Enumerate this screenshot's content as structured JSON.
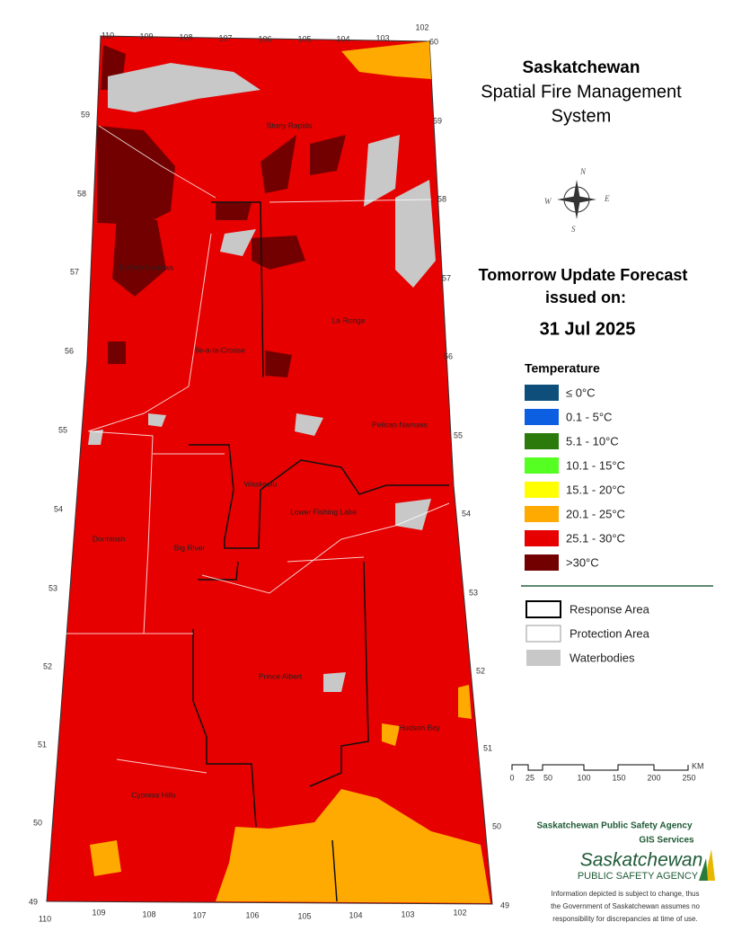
{
  "header": {
    "title": "Saskatchewan",
    "subtitle_lines": [
      "Spatial Fire Management",
      "System"
    ]
  },
  "forecast": {
    "heading": "Tomorrow Update Forecast",
    "issued": "issued on:",
    "date": "31 Jul 2025"
  },
  "legend": {
    "title": "Temperature",
    "items": [
      {
        "label": "≤ 0°C",
        "color": "#0d4f7a"
      },
      {
        "label": "0.1 - 5°C",
        "color": "#0b5fe0"
      },
      {
        "label": "5.1 - 10°C",
        "color": "#2b7a0b"
      },
      {
        "label": "10.1 - 15°C",
        "color": "#55ff22"
      },
      {
        "label": "15.1 - 20°C",
        "color": "#ffff00"
      },
      {
        "label": "20.1 - 25°C",
        "color": "#ffaa00"
      },
      {
        "label": "25.1 - 30°C",
        "color": "#e60000"
      },
      {
        "label": ">30°C",
        "color": "#730000"
      }
    ]
  },
  "boundaries": [
    "Response Area",
    "Protection Area",
    "Waterbodies"
  ],
  "scale": {
    "labels": [
      "0",
      "25",
      "50",
      "100",
      "150",
      "200",
      "250"
    ],
    "unit": "KM"
  },
  "compass": [
    "N",
    "E",
    "S",
    "W"
  ],
  "agency": {
    "name": "Saskatchewan Public Safety Agency",
    "dept": "GIS  Services",
    "logo_name": "Saskatchewan",
    "logo_sub": "PUBLIC SAFETY AGENCY",
    "disclaimer": [
      "Information depicted is subject to change, thus",
      "the Government of Saskatchewan assumes no",
      "responsibility for discrepancies at time of use."
    ]
  },
  "graticule": {
    "top": [
      "110",
      "109",
      "108",
      "107",
      "106",
      "105",
      "104",
      "103",
      "102"
    ],
    "bottom": [
      "110",
      "109",
      "108",
      "107",
      "106",
      "105",
      "104",
      "103",
      "102"
    ],
    "left": [
      "59",
      "58",
      "57",
      "56",
      "55",
      "54",
      "53",
      "52",
      "51",
      "50",
      "49"
    ],
    "right": [
      "60",
      "59",
      "58",
      "57",
      "56",
      "55",
      "54",
      "53",
      "52",
      "51",
      "50",
      "49"
    ]
  },
  "places": [
    "Stony Rapids",
    "Buffalo Narrows",
    "Ile-a-la-Crosse",
    "La Ronge",
    "Pelican Narrows",
    "Waskesiu",
    "Lower Fishing Lake",
    "Dorintosh",
    "Big River",
    "Prince Albert",
    "Hudson Bay",
    "Cypress Hills"
  ]
}
